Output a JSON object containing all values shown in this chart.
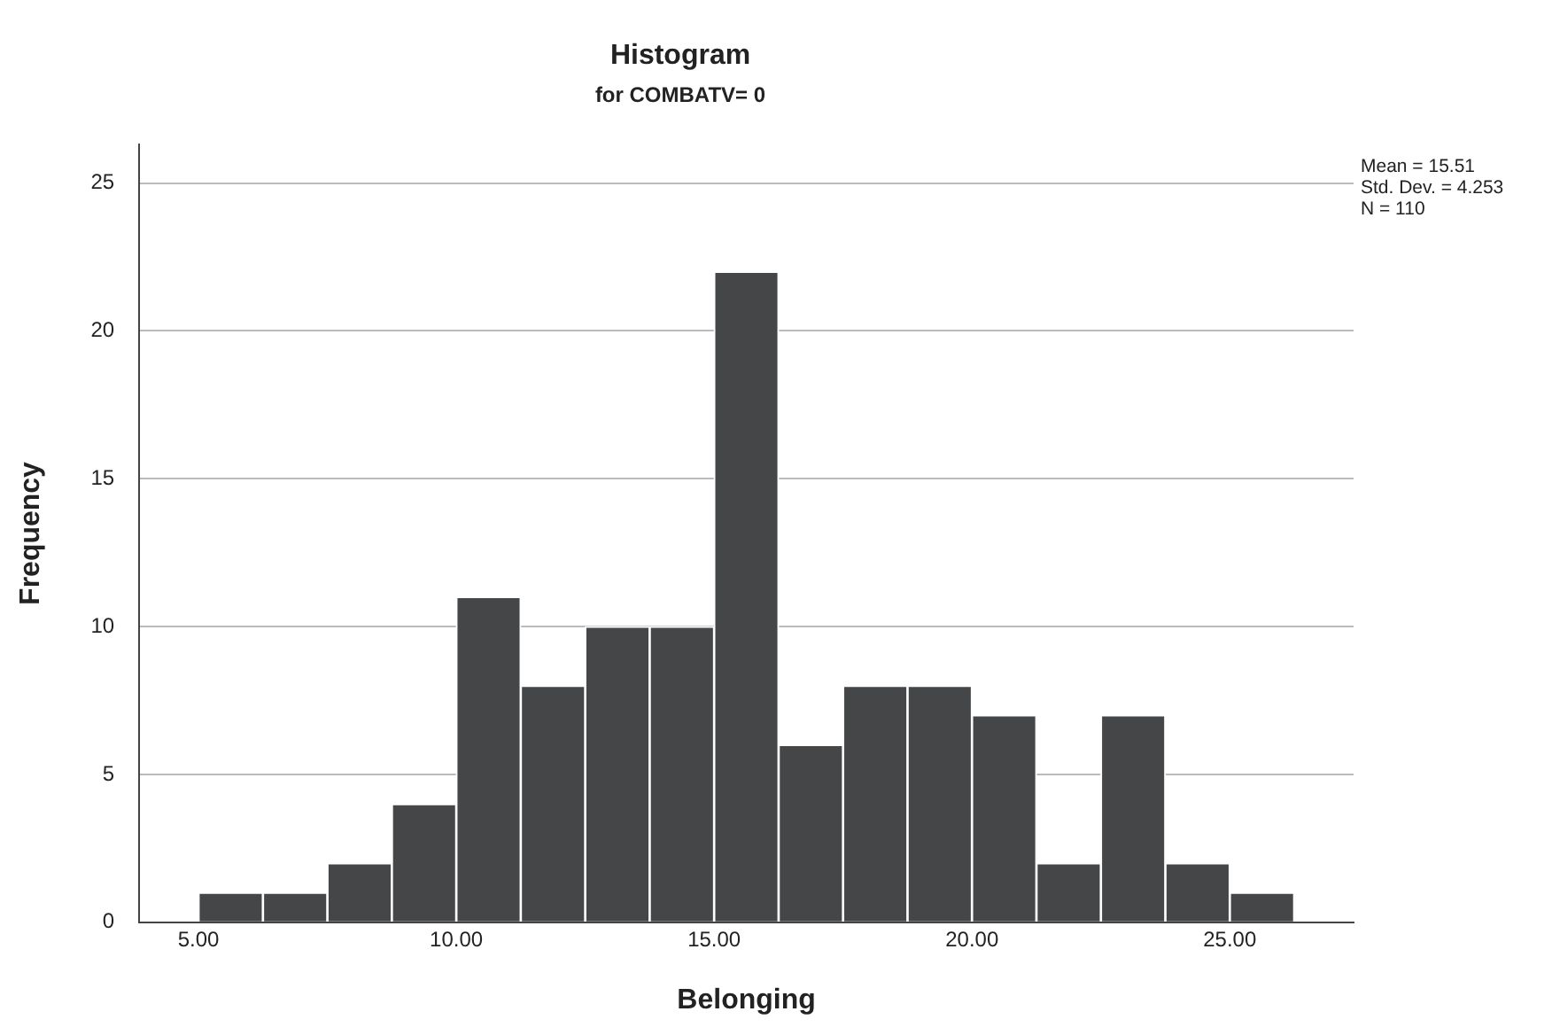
{
  "chart_data": {
    "type": "histogram",
    "title": "Histogram",
    "subtitle": "for COMBATV= 0",
    "xlabel": "Belonging",
    "ylabel": "Frequency",
    "bins": [
      5,
      6.25,
      7.5,
      8.75,
      10,
      11.25,
      12.5,
      13.75,
      15,
      16.25,
      17.5,
      18.75,
      20,
      21.25,
      22.5,
      23.75,
      25,
      26.25
    ],
    "values": [
      1,
      1,
      2,
      4,
      11,
      8,
      10,
      10,
      22,
      6,
      8,
      8,
      7,
      2,
      7,
      2,
      1
    ],
    "color": "#444648",
    "xlim": [
      3.85,
      27.4
    ],
    "xticks": [
      {
        "value": 5,
        "label": "5.00"
      },
      {
        "value": 10,
        "label": "10.00"
      },
      {
        "value": 15,
        "label": "15.00"
      },
      {
        "value": 20,
        "label": "20.00"
      },
      {
        "value": 25,
        "label": "25.00"
      }
    ],
    "ylim": [
      0,
      26.3
    ],
    "yticks": [
      0,
      5,
      10,
      15,
      20,
      25
    ],
    "grid": "y",
    "legend": false,
    "annotations": [
      "Mean = 15.51",
      "Std. Dev. = 4.253",
      "N = 110"
    ]
  }
}
